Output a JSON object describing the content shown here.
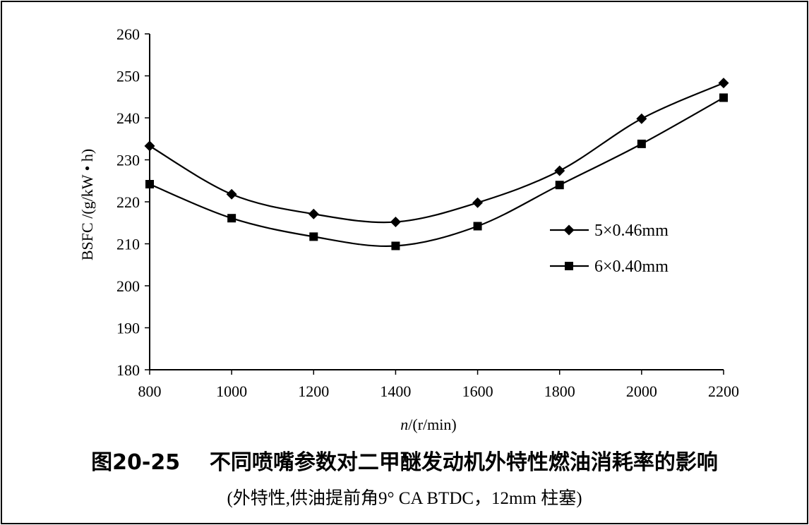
{
  "figure_caption": "图20-25    不同喷嘴参数对二甲醚发动机外特性燃油消耗率的影响",
  "figure_subcaption": "(外特性,供油提前角9° CA BTDC，12mm 柱塞)",
  "chart_data": {
    "type": "line",
    "title": "",
    "xlabel_var": "n",
    "xlabel_unit": "/(r/min)",
    "ylabel": "BSFC /(g/kW • h)",
    "xlim": [
      800,
      2200
    ],
    "ylim": [
      180,
      260
    ],
    "xticks": [
      800,
      1000,
      1200,
      1400,
      1600,
      1800,
      2000,
      2200
    ],
    "yticks": [
      180,
      190,
      200,
      210,
      220,
      230,
      240,
      250,
      260
    ],
    "grid": false,
    "legend_position": "right",
    "series": [
      {
        "name": "5×0.46mm",
        "marker": "diamond",
        "color": "#000000",
        "x": [
          800,
          1000,
          1200,
          1400,
          1600,
          1800,
          2000,
          2200
        ],
        "y": [
          233.3,
          221.8,
          217.1,
          215.2,
          219.8,
          227.4,
          239.8,
          248.3
        ]
      },
      {
        "name": "6×0.40mm",
        "marker": "square",
        "color": "#000000",
        "x": [
          800,
          1000,
          1200,
          1400,
          1600,
          1800,
          2000,
          2200
        ],
        "y": [
          224.2,
          216.1,
          211.7,
          209.5,
          214.2,
          224.0,
          233.8,
          244.8
        ]
      }
    ]
  }
}
